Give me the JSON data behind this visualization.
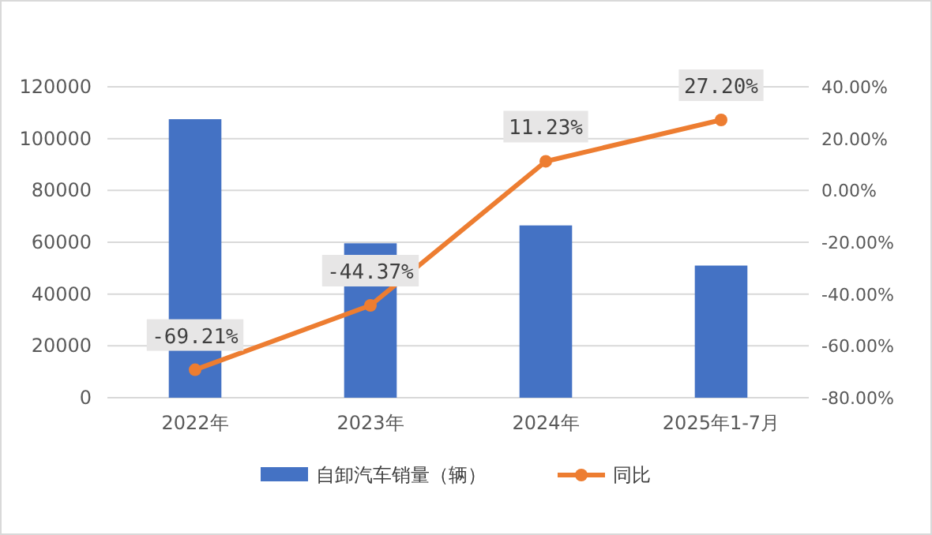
{
  "chart_data": {
    "type": "bar",
    "categories": [
      "2022年",
      "2023年",
      "2024年",
      "2025年1-7月"
    ],
    "series": [
      {
        "name": "自卸汽车销量（辆）",
        "color": "#4472c4",
        "values": [
          107500,
          59600,
          66500,
          51000
        ]
      },
      {
        "name": "同比",
        "type": "line",
        "axis": "y2",
        "color": "#ed7d31",
        "values": [
          -69.21,
          -44.37,
          11.23,
          27.2
        ],
        "value_labels": [
          "-69.21%",
          "-44.37%",
          "11.23%",
          "27.20%"
        ]
      }
    ],
    "ylim": [
      0,
      120000
    ],
    "yticks": [
      0,
      20000,
      40000,
      60000,
      80000,
      100000,
      120000
    ],
    "y2lim": [
      -80,
      40
    ],
    "y2ticks": [
      {
        "value": -80,
        "label": "-80.00%"
      },
      {
        "value": -60,
        "label": "-60.00%"
      },
      {
        "value": -40,
        "label": "-40.00%"
      },
      {
        "value": -20,
        "label": "-20.00%"
      },
      {
        "value": 0,
        "label": "0.00%"
      },
      {
        "value": 20,
        "label": "20.00%"
      },
      {
        "value": 40,
        "label": "40.00%"
      }
    ],
    "grid": "y",
    "legend": "bottom",
    "marker": "circle"
  }
}
